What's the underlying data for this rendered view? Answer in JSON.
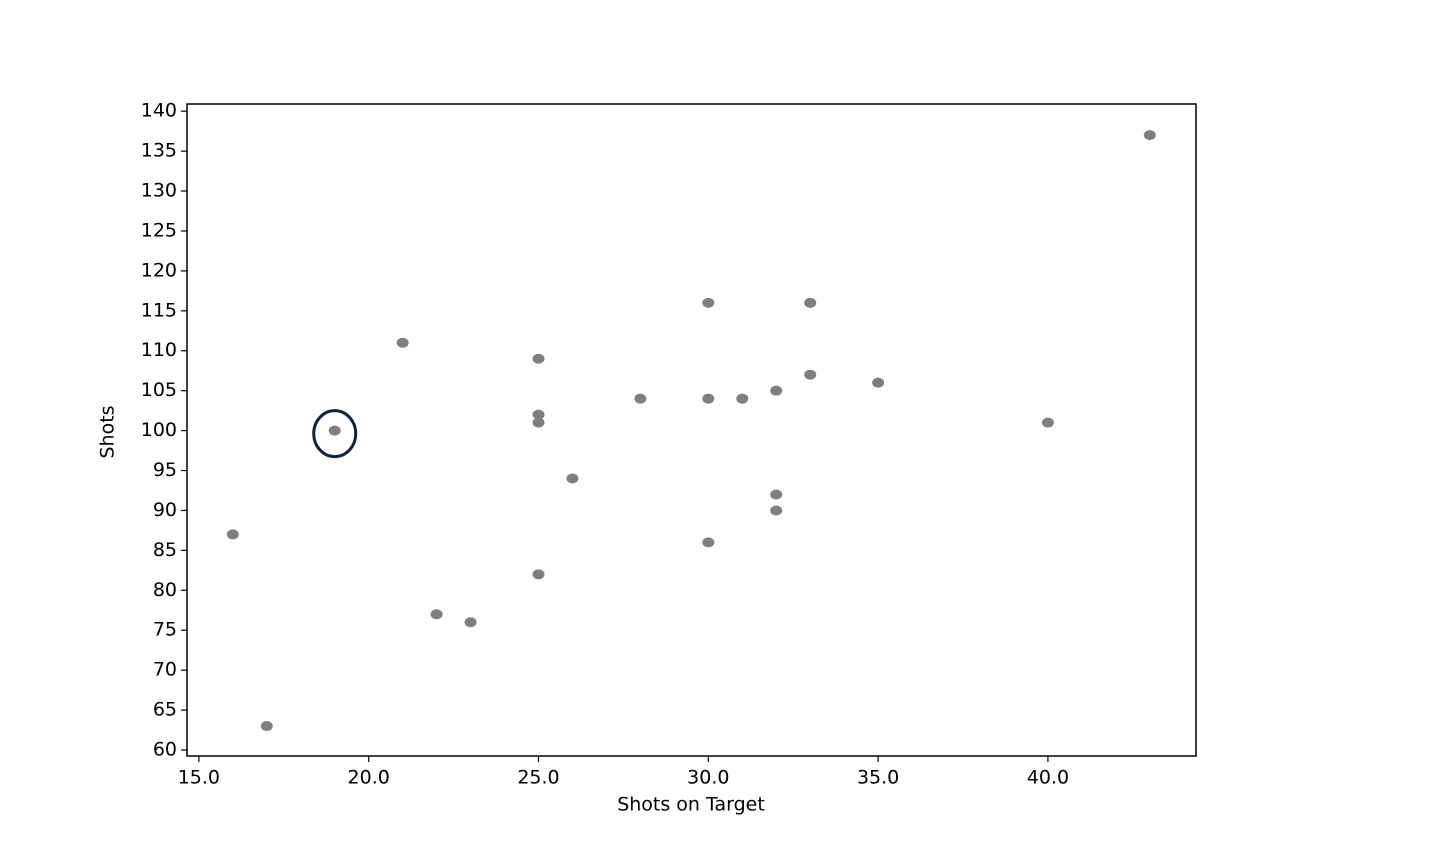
{
  "chart_data": {
    "type": "scatter",
    "x_label": "Shots on Target",
    "y_label": "Shots",
    "x": [
      16,
      17,
      19,
      21,
      22,
      23,
      25,
      25,
      25,
      25,
      26,
      28,
      30,
      30,
      30,
      31,
      32,
      32,
      32,
      33,
      33,
      35,
      40,
      43
    ],
    "values": [
      87,
      63,
      100,
      111,
      77,
      76,
      109,
      102,
      101,
      82,
      94,
      104,
      116,
      104,
      86,
      104,
      105,
      92,
      90,
      116,
      107,
      106,
      101,
      137
    ],
    "color": "#7f7f7f",
    "highlighted_point": 2,
    "highlight_color": "#14213d",
    "xlim": [
      14.65,
      44.36
    ],
    "xticks": [
      {
        "value": 15,
        "label": "15.0"
      },
      {
        "value": 20,
        "label": "20.0"
      },
      {
        "value": 25,
        "label": "25.0"
      },
      {
        "value": 30,
        "label": "30.0"
      },
      {
        "value": 35,
        "label": "35.0"
      },
      {
        "value": 40,
        "label": "40.0"
      }
    ],
    "ylim": [
      59.25,
      140.9
    ],
    "yticks": [
      60,
      65,
      70,
      75,
      80,
      85,
      90,
      95,
      100,
      105,
      110,
      115,
      120,
      125,
      130,
      135,
      140
    ]
  }
}
